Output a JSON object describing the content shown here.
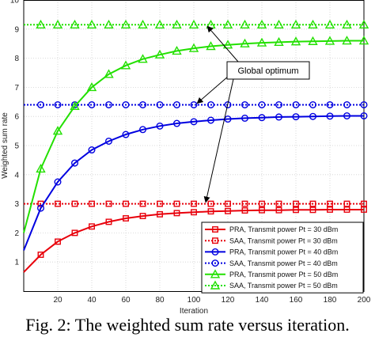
{
  "caption": "Fig. 2: The weighted sum rate versus iteration.",
  "chart_data": {
    "type": "line",
    "xlabel": "Iteration",
    "ylabel": "Weighted sum rate",
    "xlim": [
      0,
      200
    ],
    "ylim": [
      0,
      10
    ],
    "xticks": [
      20,
      40,
      60,
      80,
      100,
      120,
      140,
      160,
      180,
      200
    ],
    "yticks": [
      1,
      2,
      3,
      4,
      5,
      6,
      7,
      8,
      9,
      10
    ],
    "grid": true,
    "legend_position": "bottom-right",
    "annotation": {
      "text": "Global optimum"
    },
    "series": [
      {
        "name": "PRA, Transmit power Pt = 30 dBm",
        "color": "#e8000b",
        "dash": "solid",
        "marker": "square",
        "x": [
          0,
          10,
          20,
          30,
          40,
          50,
          60,
          70,
          80,
          90,
          100,
          110,
          120,
          130,
          140,
          150,
          160,
          170,
          180,
          190,
          200
        ],
        "y": [
          0.65,
          1.25,
          1.7,
          2.0,
          2.22,
          2.38,
          2.5,
          2.58,
          2.64,
          2.68,
          2.71,
          2.74,
          2.75,
          2.77,
          2.78,
          2.78,
          2.79,
          2.79,
          2.8,
          2.8,
          2.8
        ]
      },
      {
        "name": "SAA, Transmit power Pt = 30 dBm",
        "color": "#e8000b",
        "dash": "dotted",
        "marker": "square",
        "x": [
          0,
          10,
          20,
          30,
          40,
          50,
          60,
          70,
          80,
          90,
          100,
          110,
          120,
          130,
          140,
          150,
          160,
          170,
          180,
          190,
          200
        ],
        "y": [
          3.0,
          3.0,
          3.0,
          3.0,
          3.0,
          3.0,
          3.0,
          3.0,
          3.0,
          3.0,
          3.0,
          3.0,
          3.0,
          3.0,
          3.0,
          3.0,
          3.0,
          3.0,
          3.0,
          3.0,
          3.0
        ]
      },
      {
        "name": "PRA, Transmit power Pt = 40 dBm",
        "color": "#0000e0",
        "dash": "solid",
        "marker": "circle",
        "x": [
          0,
          10,
          20,
          30,
          40,
          50,
          60,
          70,
          80,
          90,
          100,
          110,
          120,
          130,
          140,
          150,
          160,
          170,
          180,
          190,
          200
        ],
        "y": [
          1.4,
          2.85,
          3.75,
          4.4,
          4.85,
          5.15,
          5.38,
          5.55,
          5.67,
          5.76,
          5.82,
          5.87,
          5.91,
          5.94,
          5.96,
          5.98,
          5.99,
          6.0,
          6.01,
          6.02,
          6.02
        ]
      },
      {
        "name": "SAA, Transmit power Pt = 40 dBm",
        "color": "#0000e0",
        "dash": "dotted",
        "marker": "circle",
        "x": [
          0,
          10,
          20,
          30,
          40,
          50,
          60,
          70,
          80,
          90,
          100,
          110,
          120,
          130,
          140,
          150,
          160,
          170,
          180,
          190,
          200
        ],
        "y": [
          6.4,
          6.4,
          6.4,
          6.4,
          6.4,
          6.4,
          6.4,
          6.4,
          6.4,
          6.4,
          6.4,
          6.4,
          6.4,
          6.4,
          6.4,
          6.4,
          6.4,
          6.4,
          6.4,
          6.4,
          6.4
        ]
      },
      {
        "name": "PRA, Transmit power Pt = 50 dBm",
        "color": "#22e000",
        "dash": "solid",
        "marker": "triangle",
        "x": [
          0,
          10,
          20,
          30,
          40,
          50,
          60,
          70,
          80,
          90,
          100,
          110,
          120,
          130,
          140,
          150,
          160,
          170,
          180,
          190,
          200
        ],
        "y": [
          2.0,
          4.2,
          5.5,
          6.35,
          7.0,
          7.45,
          7.75,
          7.97,
          8.12,
          8.25,
          8.34,
          8.41,
          8.46,
          8.5,
          8.53,
          8.55,
          8.57,
          8.58,
          8.59,
          8.6,
          8.6
        ]
      },
      {
        "name": "SAA, Transmit power Pt = 50 dBm",
        "color": "#22e000",
        "dash": "dotted",
        "marker": "triangle",
        "x": [
          0,
          10,
          20,
          30,
          40,
          50,
          60,
          70,
          80,
          90,
          100,
          110,
          120,
          130,
          140,
          150,
          160,
          170,
          180,
          190,
          200
        ],
        "y": [
          9.15,
          9.15,
          9.15,
          9.15,
          9.15,
          9.15,
          9.15,
          9.15,
          9.15,
          9.15,
          9.15,
          9.15,
          9.15,
          9.15,
          9.15,
          9.15,
          9.15,
          9.15,
          9.15,
          9.15,
          9.15
        ]
      }
    ]
  }
}
